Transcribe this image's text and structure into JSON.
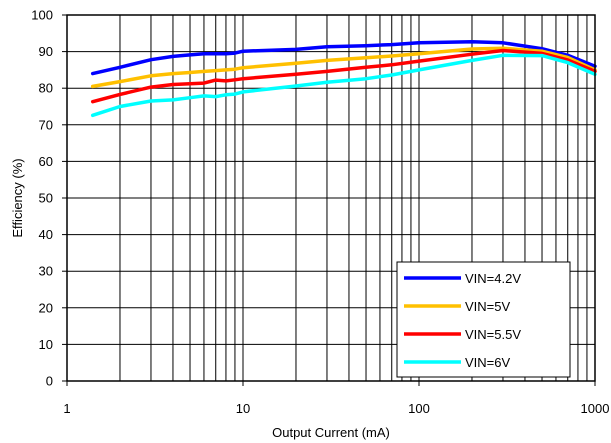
{
  "chart_data": {
    "type": "line",
    "title": "",
    "xlabel": "Output Current  (mA)",
    "ylabel": "Efficiency (%)",
    "x_scale": "log",
    "xlim": [
      1,
      1000
    ],
    "ylim": [
      0,
      100
    ],
    "x_ticks": [
      1,
      10,
      100,
      1000
    ],
    "x_tick_labels": [
      "1",
      "10",
      "100",
      "1000"
    ],
    "y_ticks": [
      0,
      10,
      20,
      30,
      40,
      50,
      60,
      70,
      80,
      90,
      100
    ],
    "y_tick_labels": [
      "0",
      "10",
      "20",
      "30",
      "40",
      "50",
      "60",
      "70",
      "80",
      "90",
      "100"
    ],
    "grid": true,
    "legend_position": "bottom-right",
    "series": [
      {
        "name": "VIN=4.2V",
        "color": "#0000ff",
        "x": [
          1.4,
          2,
          3,
          4,
          5,
          6,
          7,
          8,
          9,
          10,
          20,
          30,
          50,
          70,
          100,
          200,
          300,
          500,
          700,
          1000
        ],
        "y": [
          84,
          85.7,
          87.8,
          88.7,
          89.1,
          89.4,
          89.4,
          89.4,
          89.6,
          90.1,
          90.6,
          91.3,
          91.6,
          91.9,
          92.4,
          92.7,
          92.4,
          90.8,
          89,
          86
        ]
      },
      {
        "name": "VIN=5V",
        "color": "#ffc000",
        "x": [
          1.4,
          2,
          3,
          4,
          5,
          6,
          7,
          8,
          9,
          10,
          20,
          30,
          50,
          70,
          100,
          200,
          300,
          500,
          700,
          1000
        ],
        "y": [
          80.5,
          81.8,
          83.4,
          84,
          84.3,
          84.6,
          84.8,
          85,
          85.2,
          85.6,
          86.8,
          87.6,
          88.3,
          88.8,
          89.4,
          90.7,
          90.9,
          90.1,
          88.4,
          85
        ]
      },
      {
        "name": "VIN=5.5V",
        "color": "#ff0000",
        "x": [
          1.4,
          2,
          3,
          4,
          5,
          6,
          7,
          8,
          9,
          10,
          20,
          30,
          50,
          70,
          100,
          200,
          300,
          500,
          700,
          1000
        ],
        "y": [
          76.3,
          78.3,
          80.3,
          81,
          81.2,
          81.4,
          82.2,
          82,
          82.3,
          82.6,
          83.8,
          84.6,
          85.7,
          86.4,
          87.4,
          89.3,
          90.3,
          89.5,
          87.7,
          84.6
        ]
      },
      {
        "name": "VIN=6V",
        "color": "#00ffff",
        "x": [
          1.4,
          2,
          3,
          4,
          5,
          6,
          7,
          8,
          9,
          10,
          20,
          30,
          50,
          70,
          100,
          200,
          300,
          500,
          700,
          1000
        ],
        "y": [
          72.6,
          75,
          76.5,
          76.8,
          77.4,
          77.9,
          77.7,
          78.2,
          78.4,
          79,
          80.6,
          81.6,
          82.6,
          83.6,
          85,
          87.6,
          89,
          88.9,
          87,
          83.8
        ]
      }
    ]
  }
}
